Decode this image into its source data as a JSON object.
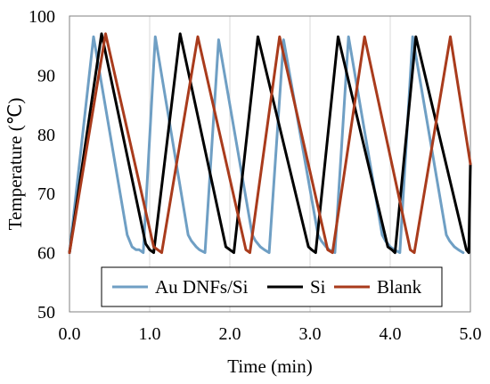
{
  "chart_data": {
    "type": "line",
    "xlabel": "Time (min)",
    "ylabel": "Temperature  (℃)",
    "xlim": [
      0,
      5
    ],
    "ylim": [
      50,
      100
    ],
    "x_ticks": [
      "0.0",
      "1.0",
      "2.0",
      "3.0",
      "4.0",
      "5.0"
    ],
    "y_ticks": [
      "50",
      "60",
      "70",
      "80",
      "90",
      "100"
    ],
    "grid": "vertical",
    "legend_position": "bottom-center",
    "series": [
      {
        "name": "Au DNFs/Si",
        "color": "#6f9fc4",
        "x": [
          0.0,
          0.3,
          0.72,
          0.75,
          0.78,
          0.83,
          0.87,
          0.92,
          1.07,
          1.48,
          1.52,
          1.58,
          1.62,
          1.69,
          1.86,
          2.28,
          2.32,
          2.38,
          2.43,
          2.49,
          2.67,
          3.1,
          3.14,
          3.2,
          3.24,
          3.31,
          3.48,
          3.9,
          3.94,
          4.0,
          4.05,
          4.12,
          4.28,
          4.7,
          4.74,
          4.8,
          4.85,
          4.91
        ],
        "y": [
          60,
          96.5,
          63.0,
          62.0,
          61.0,
          60.5,
          60.5,
          60.0,
          96.5,
          63.0,
          62.0,
          61.0,
          60.5,
          60.0,
          96.0,
          63.0,
          62.0,
          61.0,
          60.5,
          60.0,
          96.0,
          63.0,
          62.0,
          61.0,
          60.5,
          60.0,
          96.5,
          63.0,
          62.0,
          61.0,
          60.5,
          60.0,
          96.5,
          63.0,
          62.0,
          61.0,
          60.5,
          60.0
        ]
      },
      {
        "name": "Si",
        "color": "#000000",
        "x": [
          0.0,
          0.4,
          0.95,
          1.0,
          1.05,
          1.38,
          1.95,
          2.0,
          2.05,
          2.35,
          2.98,
          3.02,
          3.07,
          3.35,
          3.97,
          4.02,
          4.06,
          4.32,
          4.95,
          4.98,
          5.0
        ],
        "y": [
          60,
          97.0,
          61.5,
          60.5,
          60.0,
          97.0,
          61.0,
          60.5,
          60.0,
          96.5,
          61.0,
          60.5,
          60.0,
          96.5,
          61.0,
          60.5,
          60.0,
          96.5,
          60.5,
          60.0,
          75.0
        ]
      },
      {
        "name": "Blank",
        "color": "#a93b1c",
        "x": [
          0.0,
          0.45,
          1.05,
          1.1,
          1.15,
          1.6,
          2.2,
          2.25,
          2.62,
          3.22,
          3.28,
          3.68,
          4.25,
          4.3,
          4.75,
          5.0
        ],
        "y": [
          60,
          97.0,
          61.0,
          60.5,
          60.0,
          96.5,
          60.5,
          60.0,
          96.5,
          60.5,
          60.0,
          96.5,
          60.5,
          60.0,
          96.5,
          75.0
        ]
      }
    ]
  }
}
